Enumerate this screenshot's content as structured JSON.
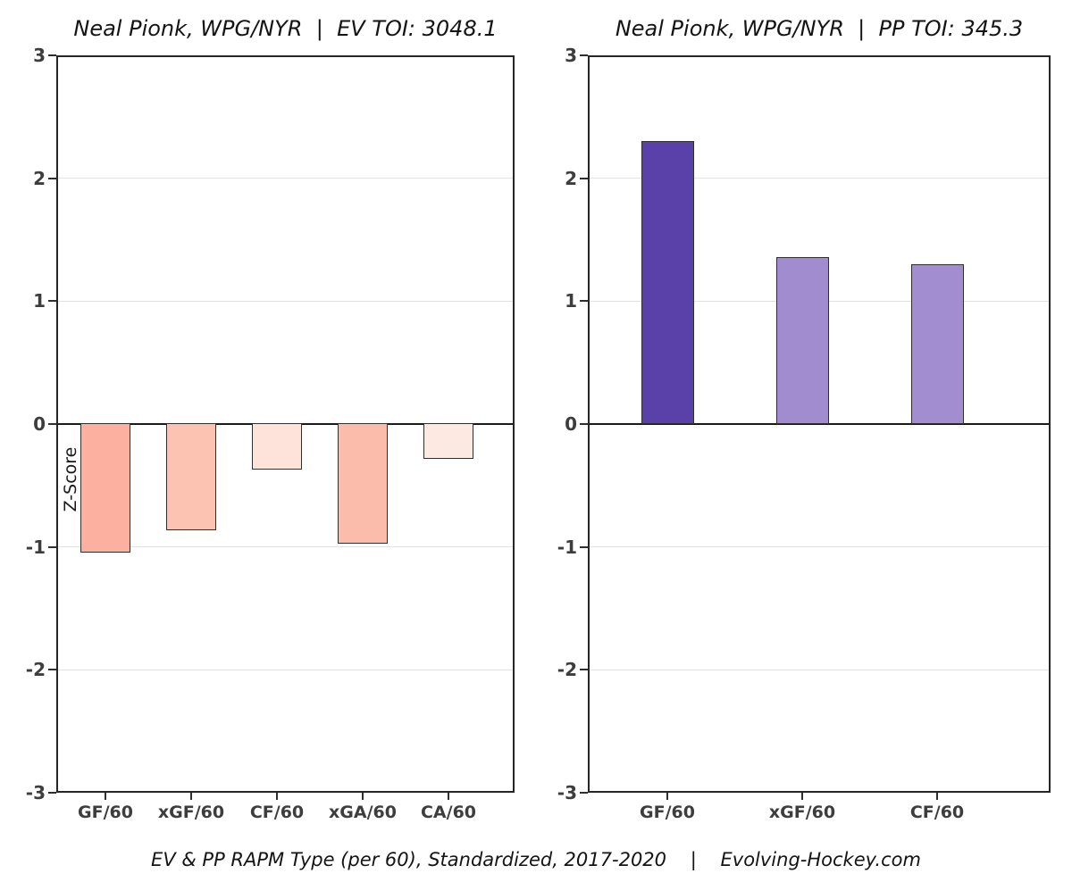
{
  "ylabel": "Z-Score",
  "footer": "EV & PP RAPM Type (per 60), Standardized, 2017-2020    |    Evolving-Hockey.com",
  "colors": {
    "background": "#ffffff",
    "axis_border": "#262626",
    "zero_line": "#1a1a1a",
    "gridline": "#e2e2e2",
    "tick_text": "#3d3d3d",
    "ev_dark": "#fbb0a0",
    "ev_light": "#fce9e2",
    "pp_dark": "#5941a9",
    "pp_light": "#a28cd0"
  },
  "chart_data": [
    {
      "type": "bar",
      "title": "Neal Pionk, WPG/NYR  |  EV TOI: 3048.1",
      "categories": [
        "GF/60",
        "xGF/60",
        "CF/60",
        "xGA/60",
        "CA/60"
      ],
      "values": [
        -1.05,
        -0.87,
        -0.38,
        -0.98,
        -0.29
      ],
      "bar_colors": [
        "#fbb0a0",
        "#fdc3b2",
        "#fde3da",
        "#fcbcab",
        "#fce9e2"
      ],
      "ylabel": "Z-Score",
      "xlabel": "",
      "ylim": [
        -3,
        3
      ],
      "yticks": [
        3,
        2,
        1,
        0,
        -1,
        -2,
        -3
      ],
      "grid": true,
      "legend": "none"
    },
    {
      "type": "bar",
      "title": "Neal Pionk, WPG/NYR  |  PP TOI: 345.3",
      "categories": [
        "GF/60",
        "xGF/60",
        "CF/60"
      ],
      "values": [
        2.3,
        1.36,
        1.3
      ],
      "bar_colors": [
        "#5941a9",
        "#a28cd0",
        "#a38dd1"
      ],
      "ylabel": "",
      "xlabel": "",
      "ylim": [
        -3,
        3
      ],
      "yticks": [
        3,
        2,
        1,
        0,
        -1,
        -2,
        -3
      ],
      "grid": true,
      "legend": "none"
    }
  ]
}
